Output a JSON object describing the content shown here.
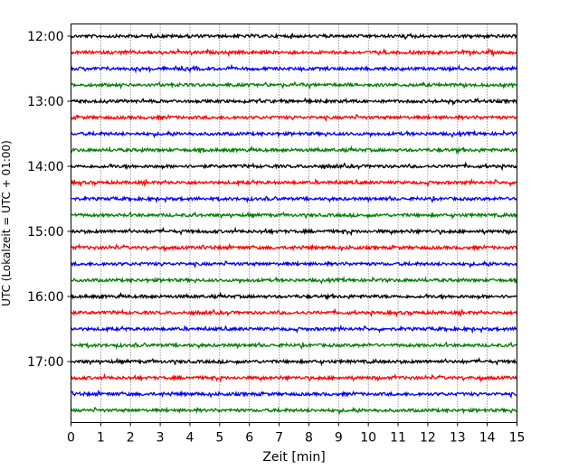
{
  "chart_data": {
    "type": "line",
    "title": "",
    "xlabel": "Zeit  [min]",
    "ylabel": "UTC (Lokalzeit = UTC + 01:00)",
    "xlim": [
      0,
      15
    ],
    "x_ticks": [
      "0",
      "1",
      "2",
      "3",
      "4",
      "5",
      "6",
      "7",
      "8",
      "9",
      "10",
      "11",
      "12",
      "13",
      "14",
      "15"
    ],
    "y_tick_labels": [
      "12:00",
      "13:00",
      "14:00",
      "15:00",
      "16:00",
      "17:00"
    ],
    "grid": "vertical dotted at each minute",
    "trace_colors": [
      "#000000",
      "#ff0000",
      "#0000ff",
      "#008000"
    ],
    "traces": [
      {
        "start": "12:00",
        "color": "#000000"
      },
      {
        "start": "12:15",
        "color": "#ff0000"
      },
      {
        "start": "12:30",
        "color": "#0000ff"
      },
      {
        "start": "12:45",
        "color": "#008000"
      },
      {
        "start": "13:00",
        "color": "#000000"
      },
      {
        "start": "13:15",
        "color": "#ff0000"
      },
      {
        "start": "13:30",
        "color": "#0000ff"
      },
      {
        "start": "13:45",
        "color": "#008000"
      },
      {
        "start": "14:00",
        "color": "#000000"
      },
      {
        "start": "14:15",
        "color": "#ff0000"
      },
      {
        "start": "14:30",
        "color": "#0000ff"
      },
      {
        "start": "14:45",
        "color": "#008000"
      },
      {
        "start": "15:00",
        "color": "#000000"
      },
      {
        "start": "15:15",
        "color": "#ff0000"
      },
      {
        "start": "15:30",
        "color": "#0000ff"
      },
      {
        "start": "15:45",
        "color": "#008000"
      },
      {
        "start": "16:00",
        "color": "#000000"
      },
      {
        "start": "16:15",
        "color": "#ff0000"
      },
      {
        "start": "16:30",
        "color": "#0000ff"
      },
      {
        "start": "16:45",
        "color": "#008000"
      },
      {
        "start": "17:00",
        "color": "#000000"
      },
      {
        "start": "17:15",
        "color": "#ff0000"
      },
      {
        "start": "17:30",
        "color": "#0000ff"
      },
      {
        "start": "17:45",
        "color": "#008000"
      }
    ]
  }
}
